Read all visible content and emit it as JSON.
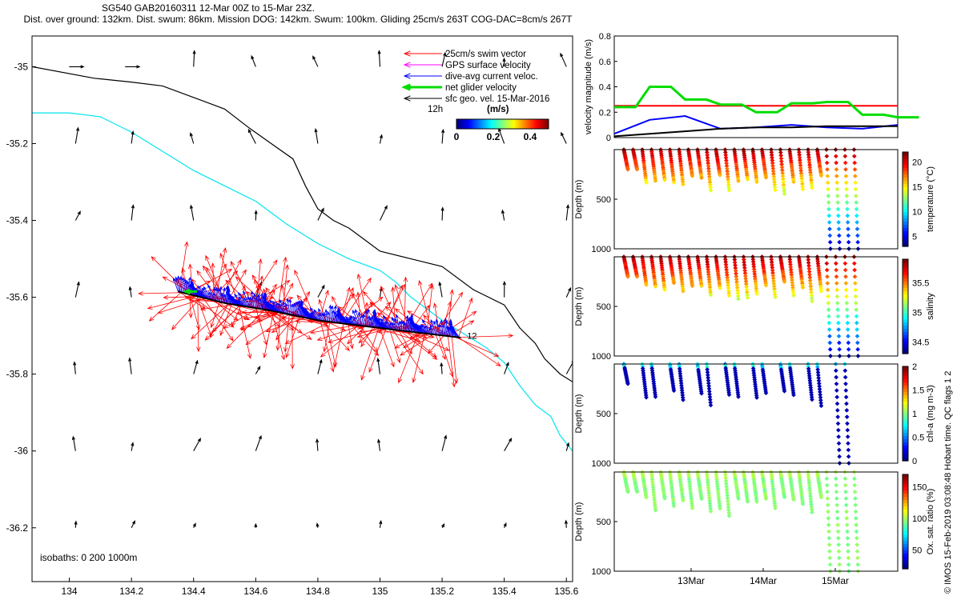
{
  "header": {
    "line1": "SG540 GAB20160311 12-Mar 00Z to 15-Mar 23Z.",
    "line2": "Dist. over ground: 132km. Dist. swum: 86km. Mission DOG: 142km. Swum: 100km. Gliding 25cm/s 263T COG-DAC=8cm/s 267T"
  },
  "credit": "© IMOS 15-Feb-2019 03:08:48 Hobart time. QC flags 1  2",
  "colors": {
    "swim": "#ff0000",
    "gps": "#ff00ff",
    "dac": "#0000ff",
    "net": "#00dd00",
    "geo": "#000000",
    "isobath200": "#000000",
    "isobath1000": "#00e5ee"
  },
  "chart_data": [
    {
      "type": "scatter",
      "subtype": "map",
      "xlim": [
        133.88,
        135.62
      ],
      "ylim": [
        -36.34,
        -34.92
      ],
      "xticks": [
        "134",
        "134.2",
        "134.4",
        "134.6",
        "134.8",
        "135",
        "135.2",
        "135.4",
        "135.6"
      ],
      "yticks": [
        "-35",
        "-35.2",
        "-35.4",
        "-35.6",
        "-35.8",
        "-36",
        "-36.2"
      ],
      "legend": [
        "25cm/s swim vector",
        "GPS surface velocity",
        "dive-avg current veloc.",
        "net glider velocity",
        "sfc geo. vel. 15-Mar-2016"
      ],
      "colorbar": {
        "title": "(m/s)",
        "ticks": [
          "0",
          "0.2",
          "0.4"
        ],
        "range": [
          0,
          0.5
        ]
      },
      "annotations": [
        "12h",
        "12"
      ],
      "isobaths_label": "isobaths: 0   200  1000m",
      "track": [
        [
          134.35,
          -35.585
        ],
        [
          134.5,
          -35.615
        ],
        [
          134.65,
          -35.635
        ],
        [
          134.8,
          -35.66
        ],
        [
          134.95,
          -35.675
        ],
        [
          135.1,
          -35.69
        ],
        [
          135.26,
          -35.705
        ]
      ]
    },
    {
      "type": "line",
      "ylabel": "velocity magnitude (m/s)",
      "ylim": [
        0,
        0.8
      ],
      "yticks": [
        "0",
        "0.2",
        "0.4",
        "0.6",
        "0.8"
      ],
      "x": [
        "12-Mar 00Z",
        "12-Mar 12Z",
        "13-Mar 00Z",
        "13-Mar 12Z",
        "14-Mar 00Z",
        "14-Mar 12Z",
        "15-Mar 00Z",
        "15-Mar 12Z",
        "15-Mar 23Z"
      ],
      "series": [
        {
          "values": [
            0.25,
            0.25,
            0.25,
            0.25,
            0.25,
            0.25,
            0.25,
            0.25,
            0.25
          ]
        },
        {
          "values": [
            0.24,
            0.4,
            0.3,
            0.26,
            0.2,
            0.27,
            0.28,
            0.18,
            0.16
          ]
        },
        {
          "values": [
            0.03,
            0.14,
            0.17,
            0.07,
            0.08,
            0.1,
            0.08,
            0.07,
            0.1
          ]
        },
        {
          "values": [
            0.01,
            0.03,
            0.05,
            0.07,
            0.08,
            0.08,
            0.09,
            0.09,
            0.09
          ]
        }
      ]
    },
    {
      "type": "scatter",
      "ylabel": "Depth (m)",
      "colorbar_label": "temperature (°C)",
      "ylim": [
        1000,
        0
      ],
      "yticks": [
        "500",
        "1000"
      ],
      "cticks": [
        "5",
        "10",
        "15",
        "20"
      ],
      "crange": [
        3,
        22
      ]
    },
    {
      "type": "scatter",
      "ylabel": "Depth (m)",
      "colorbar_label": "salinity",
      "ylim": [
        1000,
        0
      ],
      "yticks": [
        "500",
        "1000"
      ],
      "cticks": [
        "34.5",
        "35",
        "35.5"
      ],
      "crange": [
        34.3,
        35.9
      ]
    },
    {
      "type": "scatter",
      "ylabel": "Depth (m)",
      "colorbar_label": "chl-a (mg m-3)",
      "ylim": [
        1000,
        0
      ],
      "yticks": [
        "500",
        "1000"
      ],
      "cticks": [
        "0",
        "0.5",
        "1",
        "1.5",
        "2"
      ],
      "crange": [
        0,
        2
      ]
    },
    {
      "type": "scatter",
      "ylabel": "Depth (m)",
      "colorbar_label": "Ox. sat. ratio (%)",
      "ylim": [
        1000,
        0
      ],
      "yticks": [
        "500",
        "1000"
      ],
      "cticks": [
        "50",
        "100",
        "150"
      ],
      "crange": [
        20,
        170
      ],
      "xticks": [
        "13Mar",
        "14Mar",
        "15Mar"
      ]
    }
  ]
}
